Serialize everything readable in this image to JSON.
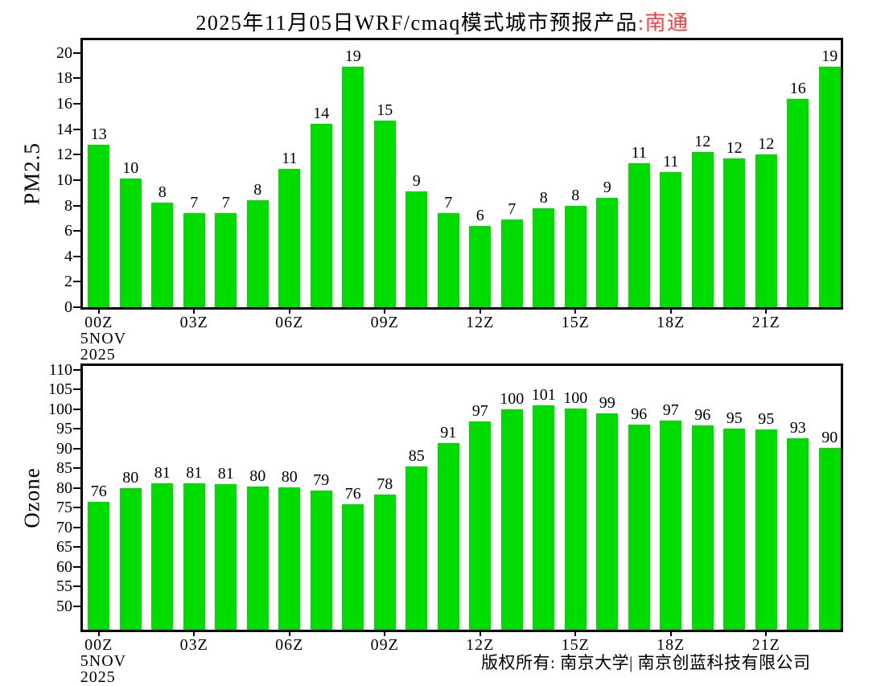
{
  "title": {
    "main": "2025年11月05日WRF/cmaq模式城市预报产品",
    "city": ":南通"
  },
  "footer": {
    "copyright": "版权所有: 南京大学| 南京创蓝科技有限公司"
  },
  "colors": {
    "bar_green": "#00dc00",
    "title_city_red": "#fa3c3c",
    "axis_black": "#000000",
    "background": "#ffffff"
  },
  "x_axis": {
    "tick_labels": [
      "00Z",
      "03Z",
      "06Z",
      "09Z",
      "12Z",
      "15Z",
      "18Z",
      "21Z"
    ],
    "ticks_every_n_bars": 3,
    "date_line1": "5NOV",
    "date_line2": "2025"
  },
  "chart_data": [
    {
      "type": "bar",
      "ylabel": "PM2.5",
      "n_bars": 24,
      "x_tick_labels": [
        "00Z",
        "03Z",
        "06Z",
        "09Z",
        "12Z",
        "15Z",
        "18Z",
        "21Z"
      ],
      "x_start": "00Z 5NOV 2025",
      "values": [
        12.8,
        10.1,
        8.2,
        7.4,
        7.4,
        8.4,
        10.9,
        14.4,
        18.9,
        14.7,
        9.1,
        7.4,
        6.4,
        6.9,
        7.8,
        8.0,
        8.6,
        11.3,
        10.6,
        12.2,
        11.7,
        12.0,
        16.4,
        18.9
      ],
      "labels": [
        13,
        10,
        8,
        7,
        7,
        8,
        11,
        14,
        19,
        15,
        9,
        7,
        6,
        7,
        8,
        8,
        9,
        11,
        11,
        12,
        12,
        12,
        16,
        19
      ],
      "yticks": [
        0,
        2,
        4,
        6,
        8,
        10,
        12,
        14,
        16,
        18,
        20
      ],
      "ylim": [
        0,
        21
      ],
      "grid": false,
      "legend": false
    },
    {
      "type": "bar",
      "ylabel": "Ozone",
      "n_bars": 24,
      "x_tick_labels": [
        "00Z",
        "03Z",
        "06Z",
        "09Z",
        "12Z",
        "15Z",
        "18Z",
        "21Z"
      ],
      "x_start": "00Z 5NOV 2025",
      "values": [
        76.4,
        79.9,
        81.2,
        81.1,
        80.9,
        80.4,
        80.1,
        79.4,
        75.8,
        78.4,
        85.4,
        91.4,
        96.9,
        99.9,
        101.0,
        100.1,
        98.9,
        96.1,
        97.1,
        95.9,
        95.1,
        94.9,
        92.6,
        90.1
      ],
      "labels": [
        76,
        80,
        81,
        81,
        81,
        80,
        80,
        79,
        76,
        78,
        85,
        91,
        97,
        100,
        101,
        100,
        99,
        96,
        97,
        96,
        95,
        95,
        93,
        90
      ],
      "yticks": [
        50,
        55,
        60,
        65,
        70,
        75,
        80,
        85,
        90,
        95,
        100,
        105,
        110
      ],
      "ylim": [
        44,
        111
      ],
      "grid": false,
      "legend": false
    }
  ]
}
